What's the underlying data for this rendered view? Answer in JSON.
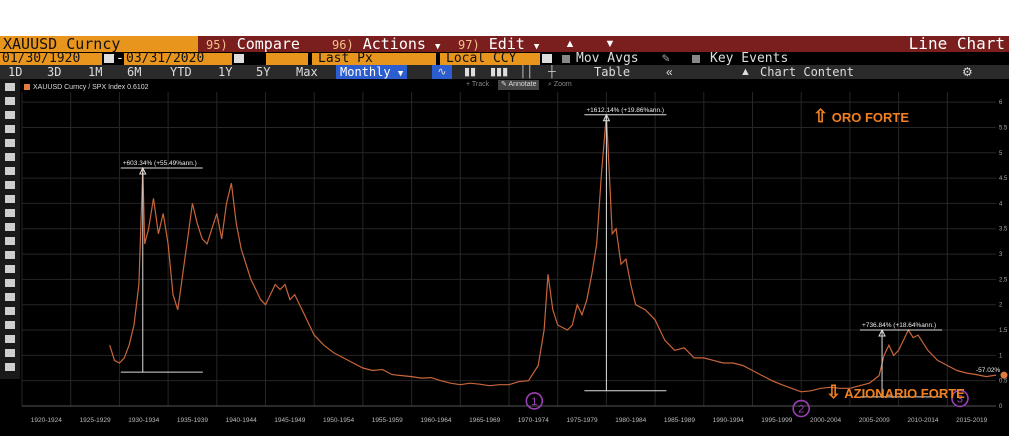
{
  "toolbar": {
    "ticker": "XAUUSD Curncy",
    "compare_num": "95)",
    "compare": "Compare",
    "actions_num": "96)",
    "actions": "Actions",
    "edit_num": "97)",
    "edit": "Edit",
    "chart_type": "Line Chart"
  },
  "controls": {
    "start_date": "01/30/1920",
    "end_date": "03/31/2020",
    "price_field": "Last Px",
    "currency": "Local CCY",
    "mov_avgs": "Mov Avgs",
    "key_events": "Key Events"
  },
  "periods": {
    "items": [
      "1D",
      "3D",
      "1M",
      "6M",
      "YTD",
      "1Y",
      "5Y",
      "Max"
    ],
    "frequency": "Monthly",
    "table": "Table",
    "chart_content": "Chart Content"
  },
  "subtools": {
    "track": "Track",
    "annotate": "Annotate",
    "zoom": "Zoom"
  },
  "colors": {
    "line": "#c8653a",
    "accent_orange": "#e8951e",
    "menu_red": "#7a1e1e",
    "annotation": "#f08020",
    "circle_marker": "#9b3fb5"
  },
  "chart_data": {
    "type": "line",
    "legend": "XAUUSD Curncy / SPX Index 0.6102",
    "xlim": [
      1920,
      2020
    ],
    "ylim": [
      0,
      6.2
    ],
    "grid": true,
    "y_axis_position": "right",
    "x_tick_labels": [
      "1920-1924",
      "1925-1929",
      "1930-1934",
      "1935-1939",
      "1940-1944",
      "1945-1949",
      "1950-1954",
      "1955-1959",
      "1960-1964",
      "1965-1969",
      "1970-1974",
      "1975-1979",
      "1980-1984",
      "1985-1989",
      "1990-1994",
      "1995-1999",
      "2000-2004",
      "2005-2009",
      "2010-2014",
      "2015-2019"
    ],
    "y_tick_labels": [
      "0",
      "0.5",
      "1",
      "1.5",
      "2",
      "2.5",
      "3",
      "3.5",
      "4",
      "4.5",
      "5",
      "5.5",
      "6"
    ],
    "last_value": 0.61,
    "series": [
      {
        "x": [
          1929.0,
          1929.5,
          1930.0,
          1930.5,
          1931.0,
          1931.5,
          1932.0,
          1932.4,
          1932.6,
          1933.0,
          1933.5,
          1934.0,
          1934.5,
          1935.0,
          1935.5,
          1936.0,
          1936.5,
          1937.0,
          1937.5,
          1938.0,
          1938.5,
          1939.0,
          1939.5,
          1940.0,
          1940.5,
          1941.0,
          1941.5,
          1942.0,
          1942.5,
          1943.0,
          1943.5,
          1944.0,
          1944.5,
          1945.0,
          1945.5,
          1946.0,
          1946.5,
          1947.0,
          1947.5,
          1948.0,
          1948.5,
          1949.0,
          1949.5,
          1950.0,
          1951.0,
          1952.0,
          1953.0,
          1954.0,
          1955.0,
          1956.0,
          1957.0,
          1958.0,
          1959.0,
          1960.0,
          1961.0,
          1962.0,
          1963.0,
          1964.0,
          1965.0,
          1966.0,
          1967.0,
          1968.0,
          1969.0,
          1970.0,
          1971.0,
          1972.0,
          1973.0,
          1973.6,
          1974.0,
          1974.5,
          1975.0,
          1976.0,
          1976.5,
          1977.0,
          1977.5,
          1978.0,
          1978.5,
          1979.0,
          1979.5,
          1980.0,
          1980.3,
          1980.6,
          1981.0,
          1981.5,
          1982.0,
          1982.5,
          1983.0,
          1984.0,
          1985.0,
          1986.0,
          1987.0,
          1988.0,
          1989.0,
          1990.0,
          1991.0,
          1992.0,
          1993.0,
          1994.0,
          1995.0,
          1996.0,
          1997.0,
          1998.0,
          1999.0,
          2000.0,
          2001.0,
          2002.0,
          2003.0,
          2004.0,
          2005.0,
          2006.0,
          2007.0,
          2008.0,
          2008.5,
          2009.0,
          2009.5,
          2010.0,
          2010.5,
          2011.0,
          2011.5,
          2012.0,
          2013.0,
          2014.0,
          2015.0,
          2016.0,
          2017.0,
          2018.0,
          2019.0,
          2020.0
        ],
        "y": [
          1.2,
          0.9,
          0.85,
          0.95,
          1.2,
          1.6,
          2.4,
          4.7,
          3.2,
          3.5,
          4.1,
          3.4,
          3.8,
          3.2,
          2.2,
          1.9,
          2.6,
          3.3,
          4.0,
          3.6,
          3.3,
          3.2,
          3.5,
          3.8,
          3.3,
          4.0,
          4.4,
          3.6,
          3.1,
          2.8,
          2.5,
          2.3,
          2.1,
          2.0,
          2.2,
          2.4,
          2.3,
          2.4,
          2.1,
          2.2,
          2.0,
          1.8,
          1.6,
          1.4,
          1.2,
          1.05,
          0.95,
          0.85,
          0.75,
          0.7,
          0.72,
          0.62,
          0.6,
          0.58,
          0.55,
          0.56,
          0.5,
          0.45,
          0.42,
          0.45,
          0.43,
          0.4,
          0.42,
          0.42,
          0.48,
          0.5,
          0.8,
          1.5,
          2.6,
          1.9,
          1.6,
          1.5,
          1.6,
          2.0,
          1.8,
          2.1,
          2.6,
          3.2,
          4.6,
          5.75,
          4.6,
          3.4,
          3.5,
          2.8,
          2.9,
          2.4,
          2.0,
          1.9,
          1.7,
          1.3,
          1.1,
          1.15,
          0.95,
          0.95,
          0.9,
          0.85,
          0.85,
          0.8,
          0.7,
          0.6,
          0.5,
          0.42,
          0.35,
          0.28,
          0.3,
          0.35,
          0.37,
          0.35,
          0.35,
          0.4,
          0.45,
          0.6,
          1.0,
          1.2,
          1.0,
          1.1,
          1.3,
          1.5,
          1.35,
          1.4,
          1.1,
          0.9,
          0.8,
          0.7,
          0.65,
          0.62,
          0.58,
          0.61
        ]
      }
    ],
    "annotations": [
      {
        "label": "+603.34% (+55.49%ann.)",
        "x": 1932.4,
        "y": 4.7,
        "base": 0.67
      },
      {
        "label": "+1612.14% (+19.86%ann.)",
        "x": 1980.0,
        "y": 5.75,
        "base": 0.3
      },
      {
        "label": "+736.84% (+18.64%ann.)",
        "x": 2008.3,
        "y": 1.5,
        "base": 0.18
      },
      {
        "label": "-57.02%",
        "x": 2020.0,
        "y": 0.61
      }
    ],
    "markers": [
      {
        "label": "1",
        "x": 1972.6,
        "y": 0.1
      },
      {
        "label": "2",
        "x": 2000.0,
        "y": -0.05
      },
      {
        "label": "3",
        "x": 2016.3,
        "y": 0.15
      }
    ],
    "text_annotations": {
      "oro_forte": "ORO FORTE",
      "azionario_forte": "AZIONARIO FORTE"
    }
  }
}
